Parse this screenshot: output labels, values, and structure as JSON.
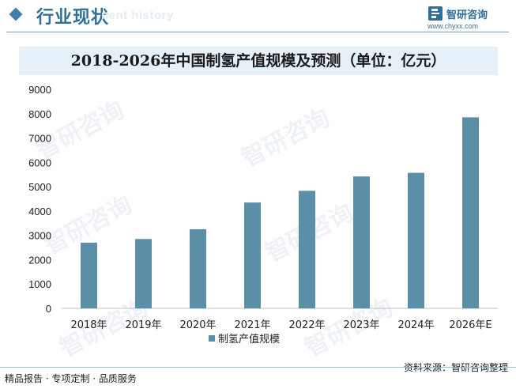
{
  "header": {
    "title": "行业现状",
    "subtitle": "nent history",
    "brand_name": "智研咨询",
    "brand_url": "www.chyxx.com"
  },
  "footer": {
    "left": "精品报告 · 专项定制 · 品质服务",
    "source": "资料来源：智研咨询整理"
  },
  "watermark": "智研咨询",
  "colors": {
    "bar": "#5b8fa8",
    "accent": "#2f6f98",
    "title_band": "#e6f0f8"
  },
  "chart_data": {
    "type": "bar",
    "title": "2018-2026年中国制氢产值规模及预测（单位：亿元）",
    "categories": [
      "2018年",
      "2019年",
      "2020年",
      "2021年",
      "2022年",
      "2023年",
      "2024年",
      "2026年E"
    ],
    "series": [
      {
        "name": "制氢产值规模",
        "values": [
          2700,
          2850,
          3250,
          4350,
          4830,
          5420,
          5570,
          7850
        ]
      }
    ],
    "ylim": [
      0,
      9000
    ],
    "yticks": [
      0,
      1000,
      2000,
      3000,
      4000,
      5000,
      6000,
      7000,
      8000,
      9000
    ],
    "xlabel": "",
    "ylabel": "",
    "grid": false,
    "legend": "bottom-center"
  }
}
